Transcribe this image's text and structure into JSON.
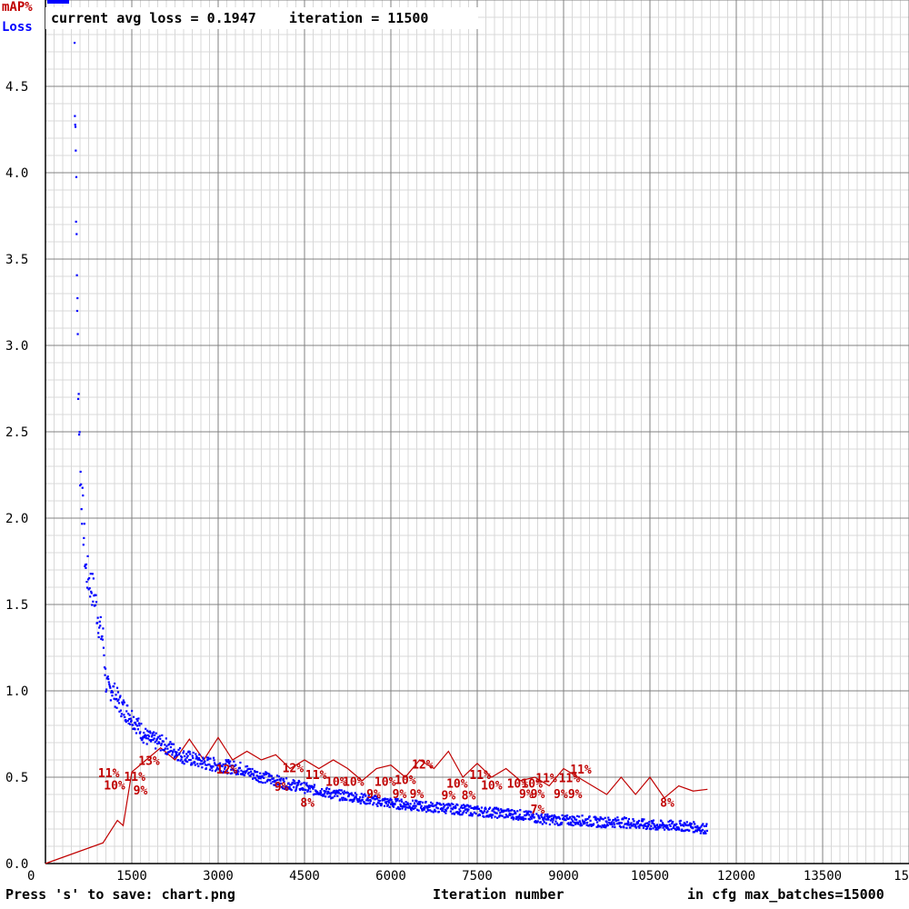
{
  "status": {
    "avg_loss_text": "current avg loss = 0.1947",
    "iteration_text": "iteration = 11500"
  },
  "legend": {
    "map": "mAP%",
    "loss": "Loss"
  },
  "footer": {
    "save_hint": "Press 's' to save: chart.png",
    "xlabel": "Iteration number",
    "max_batches": "in cfg max_batches=15000"
  },
  "colors": {
    "loss": "#0000ff",
    "map": "#c00000",
    "grid_major": "#808080",
    "grid_minor": "#d8d8d8"
  },
  "chart_data": {
    "type": "line",
    "xlabel": "Iteration number",
    "ylabel": "",
    "xlim": [
      0,
      15000
    ],
    "ylim": [
      0,
      5
    ],
    "x_ticks": [
      "0",
      "1500",
      "3000",
      "4500",
      "6000",
      "7500",
      "9000",
      "10500",
      "12000",
      "13500",
      "15"
    ],
    "y_ticks": [
      "0.0",
      "0.5",
      "1.0",
      "1.5",
      "2.0",
      "2.5",
      "3.0",
      "3.5",
      "4.0",
      "4.5"
    ],
    "grid": true,
    "series": [
      {
        "name": "Loss",
        "color": "#0000ff",
        "x": [
          500,
          520,
          540,
          560,
          600,
          650,
          700,
          750,
          800,
          850,
          900,
          950,
          1000,
          1050,
          1100,
          1150,
          1200,
          1300,
          1400,
          1500,
          1600,
          1700,
          1800,
          2000,
          2200,
          2400,
          2600,
          2800,
          3000,
          3200,
          3400,
          3600,
          3800,
          4000,
          4200,
          4400,
          4600,
          4800,
          5000,
          5300,
          5600,
          6000,
          6300,
          6600,
          7000,
          7300,
          7600,
          8000,
          8300,
          8600,
          9000,
          9300,
          9600,
          10000,
          10300,
          10600,
          11000,
          11300,
          11500
        ],
        "values": [
          4.85,
          4.3,
          3.6,
          3.0,
          2.3,
          2.0,
          1.7,
          1.65,
          1.6,
          1.55,
          1.45,
          1.35,
          1.3,
          1.05,
          1.0,
          1.02,
          0.98,
          0.92,
          0.88,
          0.85,
          0.8,
          0.75,
          0.72,
          0.7,
          0.66,
          0.62,
          0.6,
          0.58,
          0.57,
          0.56,
          0.55,
          0.52,
          0.5,
          0.48,
          0.46,
          0.45,
          0.43,
          0.42,
          0.4,
          0.39,
          0.37,
          0.35,
          0.34,
          0.33,
          0.32,
          0.31,
          0.3,
          0.29,
          0.28,
          0.26,
          0.25,
          0.25,
          0.24,
          0.24,
          0.23,
          0.22,
          0.22,
          0.21,
          0.2
        ]
      },
      {
        "name": "mAP%",
        "color": "#c00000",
        "x": [
          0,
          1000,
          1250,
          1350,
          1500,
          1750,
          2000,
          2250,
          2500,
          2750,
          3000,
          3250,
          3500,
          3750,
          4000,
          4250,
          4500,
          4750,
          5000,
          5250,
          5500,
          5750,
          6000,
          6250,
          6500,
          6750,
          7000,
          7250,
          7500,
          7750,
          8000,
          8250,
          8500,
          8750,
          9000,
          9250,
          9500,
          9750,
          10000,
          10250,
          10500,
          10750,
          11000,
          11250,
          11500
        ],
        "values": [
          0.0,
          0.12,
          0.25,
          0.22,
          0.53,
          0.6,
          0.67,
          0.6,
          0.72,
          0.6,
          0.73,
          0.6,
          0.65,
          0.6,
          0.63,
          0.55,
          0.6,
          0.55,
          0.6,
          0.55,
          0.48,
          0.55,
          0.57,
          0.5,
          0.6,
          0.55,
          0.65,
          0.5,
          0.58,
          0.5,
          0.55,
          0.48,
          0.5,
          0.45,
          0.55,
          0.5,
          0.45,
          0.4,
          0.5,
          0.4,
          0.5,
          0.38,
          0.45,
          0.42,
          0.43
        ]
      }
    ],
    "annotations": [
      {
        "text": "11%",
        "x": 1100,
        "y": 0.5
      },
      {
        "text": "10%",
        "x": 1200,
        "y": 0.43
      },
      {
        "text": "11%",
        "x": 1550,
        "y": 0.48
      },
      {
        "text": "9%",
        "x": 1650,
        "y": 0.4
      },
      {
        "text": "13%",
        "x": 1800,
        "y": 0.57
      },
      {
        "text": "12%",
        "x": 3150,
        "y": 0.52
      },
      {
        "text": "9%",
        "x": 4100,
        "y": 0.42
      },
      {
        "text": "12%",
        "x": 4300,
        "y": 0.53
      },
      {
        "text": "11%",
        "x": 4700,
        "y": 0.49
      },
      {
        "text": "8%",
        "x": 4550,
        "y": 0.33
      },
      {
        "text": "10%",
        "x": 5050,
        "y": 0.45
      },
      {
        "text": "10%",
        "x": 5350,
        "y": 0.45
      },
      {
        "text": "9%",
        "x": 5700,
        "y": 0.38
      },
      {
        "text": "10%",
        "x": 5900,
        "y": 0.45
      },
      {
        "text": "10%",
        "x": 6250,
        "y": 0.46
      },
      {
        "text": "9%",
        "x": 6150,
        "y": 0.38
      },
      {
        "text": "9%",
        "x": 6450,
        "y": 0.38
      },
      {
        "text": "12%",
        "x": 6550,
        "y": 0.55
      },
      {
        "text": "9%",
        "x": 7000,
        "y": 0.37
      },
      {
        "text": "10%",
        "x": 7150,
        "y": 0.44
      },
      {
        "text": "8%",
        "x": 7350,
        "y": 0.37
      },
      {
        "text": "11%",
        "x": 7550,
        "y": 0.49
      },
      {
        "text": "10%",
        "x": 7750,
        "y": 0.43
      },
      {
        "text": "10%",
        "x": 8200,
        "y": 0.44
      },
      {
        "text": "10%",
        "x": 8450,
        "y": 0.44
      },
      {
        "text": "9%",
        "x": 8350,
        "y": 0.38
      },
      {
        "text": "9%",
        "x": 8550,
        "y": 0.38
      },
      {
        "text": "11%",
        "x": 8700,
        "y": 0.47
      },
      {
        "text": "7%",
        "x": 8550,
        "y": 0.29
      },
      {
        "text": "11%",
        "x": 9100,
        "y": 0.47
      },
      {
        "text": "9%",
        "x": 8950,
        "y": 0.38
      },
      {
        "text": "9%",
        "x": 9200,
        "y": 0.38
      },
      {
        "text": "11%",
        "x": 9300,
        "y": 0.52
      },
      {
        "text": "8%",
        "x": 10800,
        "y": 0.33
      }
    ]
  }
}
